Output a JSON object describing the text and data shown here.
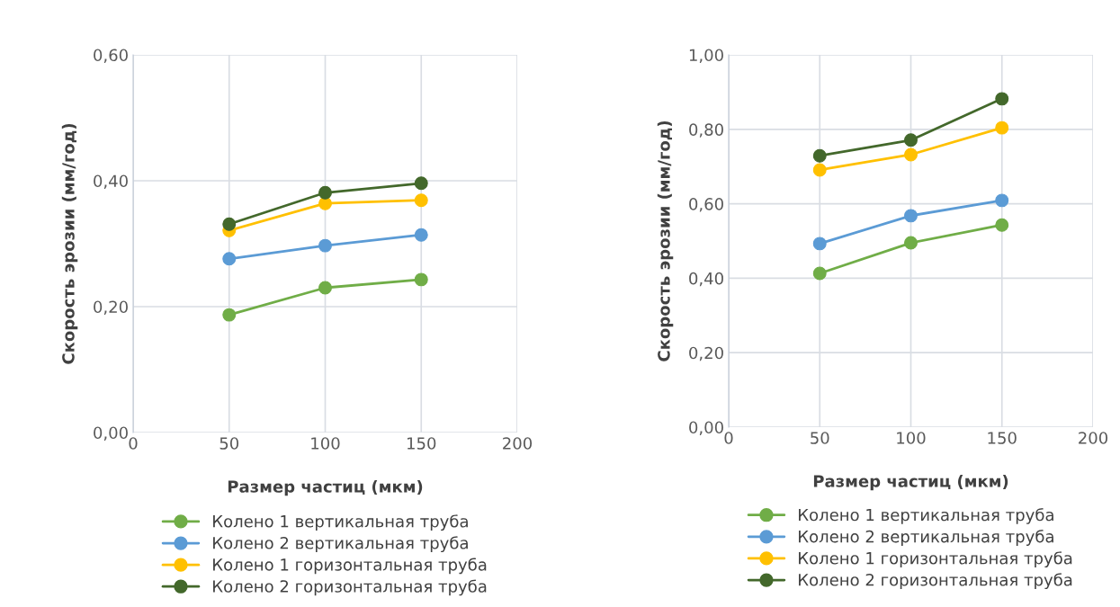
{
  "chart_data": [
    {
      "type": "line",
      "xlabel": "Размер частиц (мкм)",
      "ylabel": "Скорость эрозии (мм/год)",
      "x": [
        50,
        100,
        150
      ],
      "xlim": [
        0,
        200
      ],
      "xticks": [
        0,
        50,
        100,
        150,
        200
      ],
      "ylim": [
        0,
        0.6
      ],
      "yticks": [
        {
          "value": 0,
          "label": "0,00"
        },
        {
          "value": 0.2,
          "label": "0,20"
        },
        {
          "value": 0.4,
          "label": "0,40"
        },
        {
          "value": 0.6,
          "label": "0,60"
        }
      ],
      "grid": true,
      "legend": "bottom",
      "marker": "circle",
      "line_style": "solid",
      "series": [
        {
          "name": "Колено 1 вертикальная труба",
          "color": "#70ad47",
          "values": [
            0.187,
            0.23,
            0.243
          ]
        },
        {
          "name": "Колено 2 вертикальная труба",
          "color": "#5b9bd5",
          "values": [
            0.276,
            0.297,
            0.314
          ]
        },
        {
          "name": "Колено 1 горизонтальная труба",
          "color": "#ffc000",
          "values": [
            0.321,
            0.364,
            0.369
          ]
        },
        {
          "name": "Колено 2 горизонтальная труба",
          "color": "#43682b",
          "values": [
            0.331,
            0.381,
            0.396
          ]
        }
      ]
    },
    {
      "type": "line",
      "xlabel": "Размер частиц (мкм)",
      "ylabel": "Скорость эрозии (мм/год)",
      "x": [
        50,
        100,
        150
      ],
      "xlim": [
        0,
        200
      ],
      "xticks": [
        0,
        50,
        100,
        150,
        200
      ],
      "ylim": [
        0,
        1.0
      ],
      "yticks": [
        {
          "value": 0,
          "label": "0,00"
        },
        {
          "value": 0.2,
          "label": "0,20"
        },
        {
          "value": 0.4,
          "label": "0,40"
        },
        {
          "value": 0.6,
          "label": "0,60"
        },
        {
          "value": 0.8,
          "label": "0,80"
        },
        {
          "value": 1.0,
          "label": "1,00"
        }
      ],
      "grid": true,
      "legend": "bottom",
      "marker": "circle",
      "line_style": "solid",
      "series": [
        {
          "name": "Колено 1 вертикальная труба",
          "color": "#70ad47",
          "values": [
            0.413,
            0.495,
            0.543
          ]
        },
        {
          "name": "Колено 2 вертикальная труба",
          "color": "#5b9bd5",
          "values": [
            0.493,
            0.568,
            0.609
          ]
        },
        {
          "name": "Колено 1 горизонтальная труба",
          "color": "#ffc000",
          "values": [
            0.691,
            0.732,
            0.804
          ]
        },
        {
          "name": "Колено 2 горизонтальная труба",
          "color": "#43682b",
          "values": [
            0.729,
            0.771,
            0.882
          ]
        }
      ]
    }
  ]
}
